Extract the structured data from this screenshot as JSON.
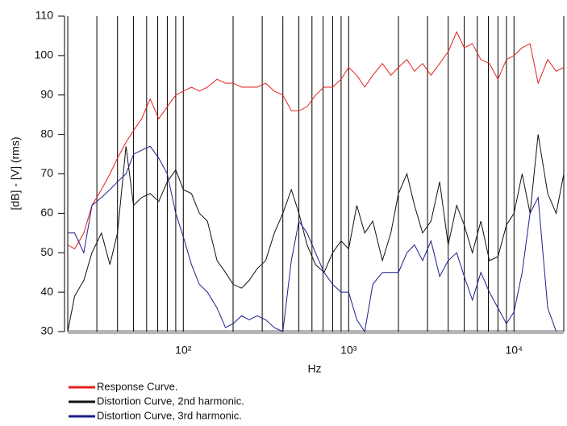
{
  "chart_data": {
    "type": "line",
    "x_label": "Hz",
    "y_label": "[dB] - [V]  (rms)",
    "log_x": true,
    "xlim": [
      20,
      20000
    ],
    "xticks": [
      {
        "value": 100,
        "label": "10²"
      },
      {
        "value": 1000,
        "label": "10³"
      },
      {
        "value": 10000,
        "label": "10⁴"
      }
    ],
    "xgrid": [
      20,
      30,
      40,
      50,
      60,
      70,
      80,
      90,
      100,
      200,
      300,
      400,
      500,
      600,
      700,
      800,
      900,
      1000,
      2000,
      3000,
      4000,
      5000,
      6000,
      7000,
      8000,
      9000,
      10000,
      20000
    ],
    "ylim": [
      30,
      110
    ],
    "yticks": [
      30,
      40,
      50,
      60,
      70,
      80,
      90,
      100,
      110
    ],
    "x": [
      20,
      22,
      25,
      28,
      32,
      36,
      40,
      45,
      50,
      56,
      63,
      71,
      80,
      90,
      100,
      112,
      125,
      140,
      160,
      180,
      200,
      225,
      250,
      280,
      315,
      355,
      400,
      450,
      500,
      560,
      630,
      710,
      800,
      900,
      1000,
      1120,
      1250,
      1400,
      1600,
      1800,
      2000,
      2250,
      2500,
      2800,
      3150,
      3550,
      4000,
      4500,
      5000,
      5600,
      6300,
      7100,
      8000,
      9000,
      10000,
      11200,
      12500,
      14000,
      16000,
      18000,
      20000
    ],
    "series": [
      {
        "name": "Response Curve.",
        "color": "#e3201b",
        "values": [
          52,
          51,
          55,
          62,
          66,
          70,
          74,
          78,
          81,
          84,
          89,
          84,
          87,
          90,
          91,
          92,
          91,
          92,
          94,
          93,
          93,
          92,
          92,
          92,
          93,
          91,
          90,
          86,
          86,
          87,
          90,
          92,
          92,
          94,
          97,
          95,
          92,
          95,
          98,
          95,
          97,
          99,
          96,
          98,
          95,
          98,
          101,
          106,
          102,
          103,
          99,
          98,
          94,
          99,
          100,
          102,
          103,
          93,
          99,
          96,
          97
        ]
      },
      {
        "name": "Distortion Curve, 2nd harmonic.",
        "color": "#111111",
        "values": [
          30,
          39,
          43,
          50,
          55,
          47,
          55,
          77,
          62,
          64,
          65,
          63,
          68,
          71,
          66,
          65,
          60,
          58,
          48,
          45,
          42,
          41,
          43,
          46,
          48,
          55,
          60,
          66,
          60,
          52,
          47,
          45,
          50,
          53,
          51,
          62,
          55,
          58,
          48,
          55,
          65,
          70,
          62,
          55,
          58,
          68,
          52,
          62,
          57,
          50,
          58,
          48,
          49,
          57,
          60,
          70,
          60,
          80,
          65,
          60,
          70
        ]
      },
      {
        "name": "Distortion Curve, 3rd harmonic.",
        "color": "#1c1f8c",
        "values": [
          55,
          55,
          50,
          62,
          64,
          66,
          68,
          70,
          75,
          76,
          77,
          74,
          70,
          60,
          54,
          47,
          42,
          40,
          36,
          31,
          32,
          34,
          33,
          34,
          33,
          31,
          30,
          48,
          58,
          55,
          50,
          45,
          42,
          40,
          40,
          33,
          30,
          42,
          45,
          45,
          45,
          50,
          52,
          48,
          53,
          44,
          48,
          50,
          44,
          38,
          45,
          40,
          36,
          32,
          35,
          45,
          60,
          64,
          36,
          30,
          null
        ]
      }
    ]
  }
}
